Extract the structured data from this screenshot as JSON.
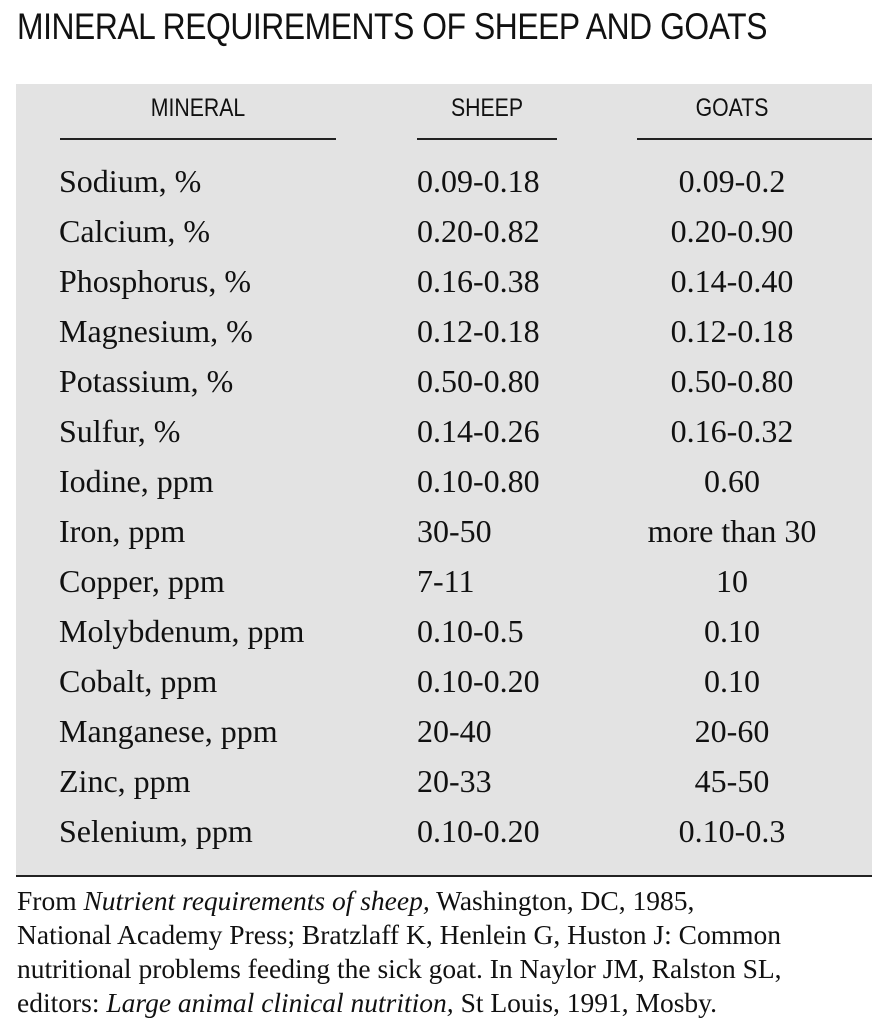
{
  "title": "MINERAL REQUIREMENTS OF SHEEP AND GOATS",
  "headers": {
    "mineral": "MINERAL",
    "sheep": "SHEEP",
    "goats": "GOATS"
  },
  "rows": [
    {
      "mineral": "Sodium, %",
      "sheep": "0.09-0.18",
      "goats": "0.09-0.2"
    },
    {
      "mineral": "Calcium, %",
      "sheep": "0.20-0.82",
      "goats": "0.20-0.90"
    },
    {
      "mineral": "Phosphorus, %",
      "sheep": "0.16-0.38",
      "goats": "0.14-0.40"
    },
    {
      "mineral": "Magnesium, %",
      "sheep": "0.12-0.18",
      "goats": "0.12-0.18"
    },
    {
      "mineral": "Potassium, %",
      "sheep": "0.50-0.80",
      "goats": "0.50-0.80"
    },
    {
      "mineral": "Sulfur, %",
      "sheep": "0.14-0.26",
      "goats": "0.16-0.32"
    },
    {
      "mineral": "Iodine, ppm",
      "sheep": "0.10-0.80",
      "goats": "0.60"
    },
    {
      "mineral": "Iron, ppm",
      "sheep": "30-50",
      "goats": "more than 30"
    },
    {
      "mineral": "Copper, ppm",
      "sheep": "7-11",
      "goats": "10"
    },
    {
      "mineral": "Molybdenum, ppm",
      "sheep": "0.10-0.5",
      "goats": "0.10"
    },
    {
      "mineral": "Cobalt, ppm",
      "sheep": "0.10-0.20",
      "goats": "0.10"
    },
    {
      "mineral": "Manganese, ppm",
      "sheep": "20-40",
      "goats": "20-60"
    },
    {
      "mineral": "Zinc, ppm",
      "sheep": "20-33",
      "goats": "45-50"
    },
    {
      "mineral": "Selenium, ppm",
      "sheep": "0.10-0.20",
      "goats": "0.10-0.3"
    }
  ],
  "source": {
    "line1_pre": "From ",
    "line1_italic": "Nutrient requirements of sheep,",
    "line1_post": " Washington, DC, 1985,",
    "line2": "National Academy Press; Bratzlaff K, Henlein G, Huston J: Common",
    "line3": "nutritional problems feeding the sick goat. In Naylor JM, Ralston SL,",
    "line4_pre": "editors: ",
    "line4_italic": "Large animal clinical nutrition,",
    "line4_post": " St Louis, 1991, Mosby."
  }
}
